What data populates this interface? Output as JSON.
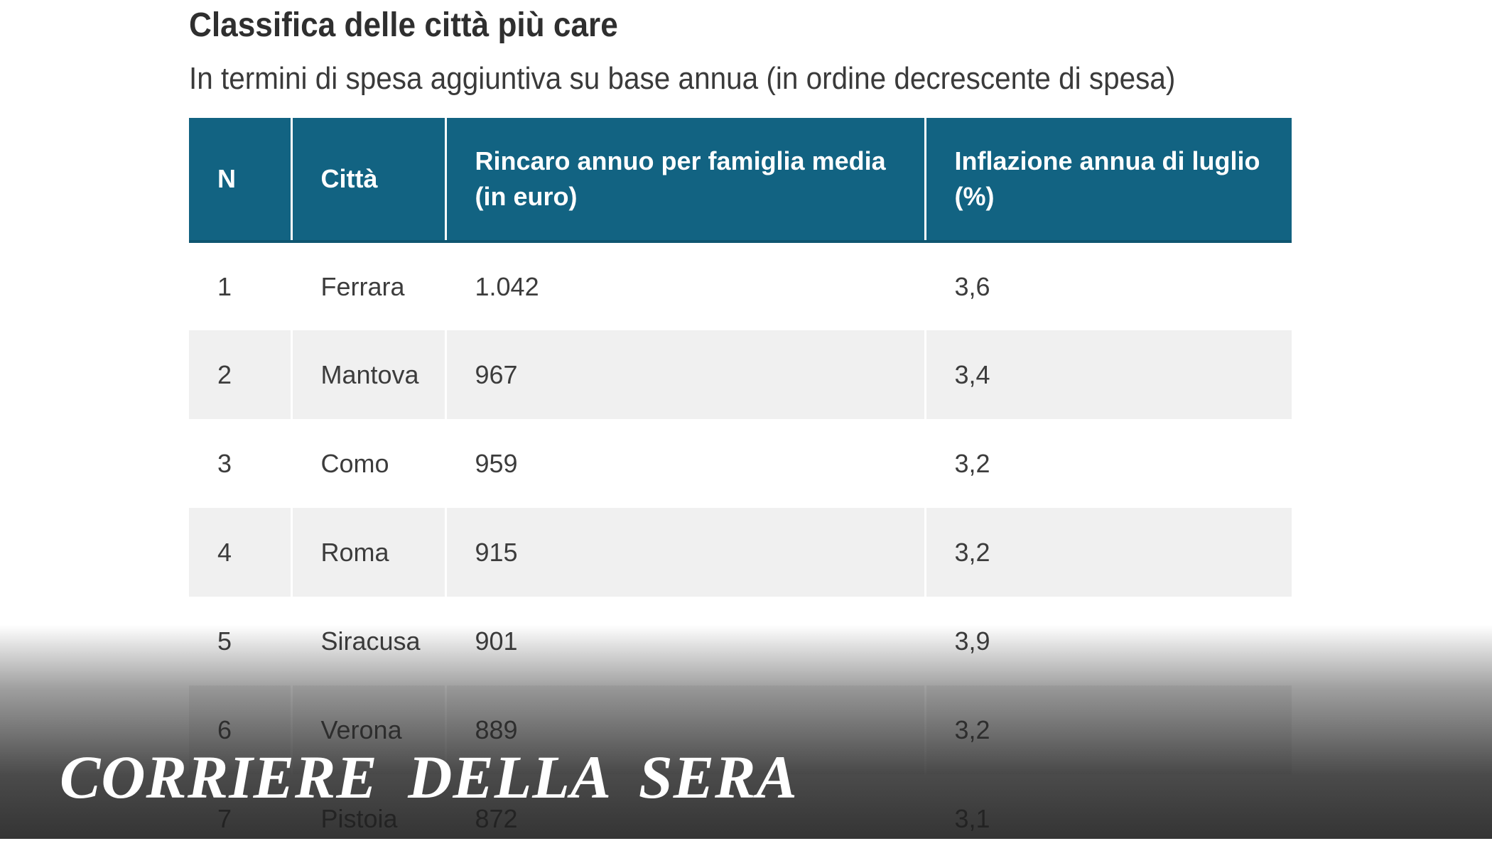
{
  "title": "Classifica delle città più care",
  "subtitle": "In termini di spesa aggiuntiva su base annua (in ordine decrescente di spesa)",
  "table": {
    "headers": {
      "n": "N",
      "city": "Città",
      "increase": "Rincaro annuo per famiglia media (in euro)",
      "inflation": "Inflazione annua di luglio (%)"
    },
    "rows": [
      {
        "n": "1",
        "city": "Ferrara",
        "increase": "1.042",
        "inflation": "3,6"
      },
      {
        "n": "2",
        "city": "Mantova",
        "increase": "967",
        "inflation": "3,4"
      },
      {
        "n": "3",
        "city": "Como",
        "increase": "959",
        "inflation": "3,2"
      },
      {
        "n": "4",
        "city": "Roma",
        "increase": "915",
        "inflation": "3,2"
      },
      {
        "n": "5",
        "city": "Siracusa",
        "increase": "901",
        "inflation": "3,9"
      },
      {
        "n": "6",
        "city": "Verona",
        "increase": "889",
        "inflation": "3,2"
      },
      {
        "n": "7",
        "city": "Pistoia",
        "increase": "872",
        "inflation": "3,1"
      }
    ]
  },
  "logo": "CORRIERE DELLA SERA",
  "colors": {
    "header_bg": "#126382",
    "header_text": "#ffffff",
    "stripe": "#f0f0f0"
  }
}
